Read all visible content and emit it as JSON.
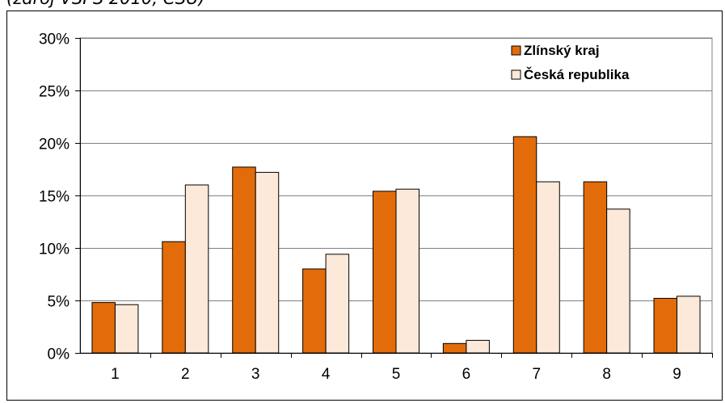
{
  "header": {
    "caption": "(zdroj VŠPS 2010, ČSÚ)"
  },
  "colors": {
    "series_1": "#E36C0A",
    "series_2": "#FDE9D9",
    "bar_stroke": "#000000",
    "grid": "#808080",
    "plot_border": "#808080"
  },
  "chart_data": {
    "type": "bar",
    "title": "",
    "xlabel": "",
    "ylabel": "",
    "categories": [
      "1",
      "2",
      "3",
      "4",
      "5",
      "6",
      "7",
      "8",
      "9"
    ],
    "series": [
      {
        "name": "Zlínský kraj",
        "color": "#E36C0A",
        "values": [
          4.8,
          10.6,
          17.7,
          8.0,
          15.4,
          0.9,
          20.6,
          16.3,
          5.2
        ]
      },
      {
        "name": "Česká republika",
        "color": "#FDE9D9",
        "values": [
          4.6,
          16.0,
          17.2,
          9.4,
          15.6,
          1.2,
          16.3,
          13.7,
          5.4
        ]
      }
    ],
    "ylim": [
      0,
      30
    ],
    "y_ticks": [
      "0%",
      "5%",
      "10%",
      "15%",
      "20%",
      "25%",
      "30%"
    ],
    "y_tick_values": [
      0,
      5,
      10,
      15,
      20,
      25,
      30
    ],
    "grid": true,
    "legend_position": "top-right"
  }
}
